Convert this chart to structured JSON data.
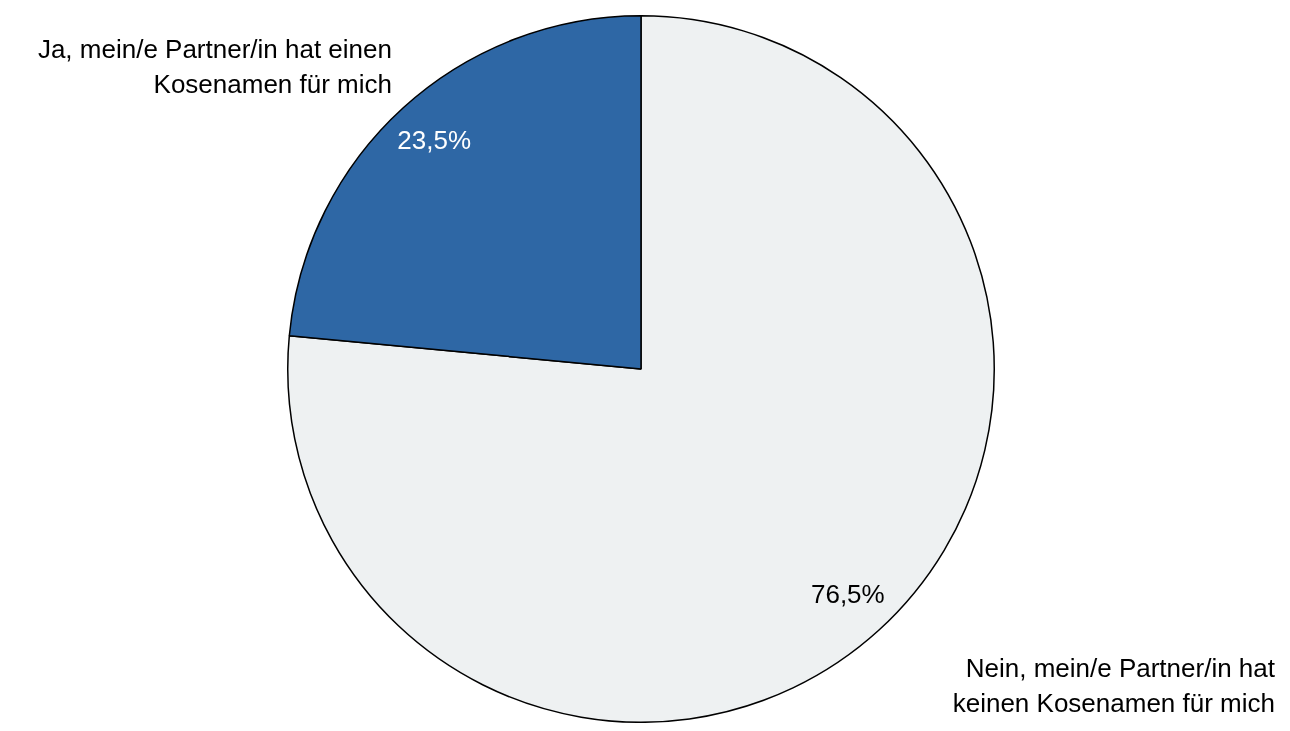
{
  "chart_data": {
    "type": "pie",
    "categories": [
      "Nein, mein/e Partner/in hat keinen Kosenamen für mich",
      "Ja, mein/e Partner/in hat einen Kosenamen für mich"
    ],
    "values": [
      76.5,
      23.5
    ],
    "colors": [
      "#eef1f2",
      "#2e67a5"
    ],
    "value_labels": [
      "76,5%",
      "23,5%"
    ],
    "legend": false
  }
}
